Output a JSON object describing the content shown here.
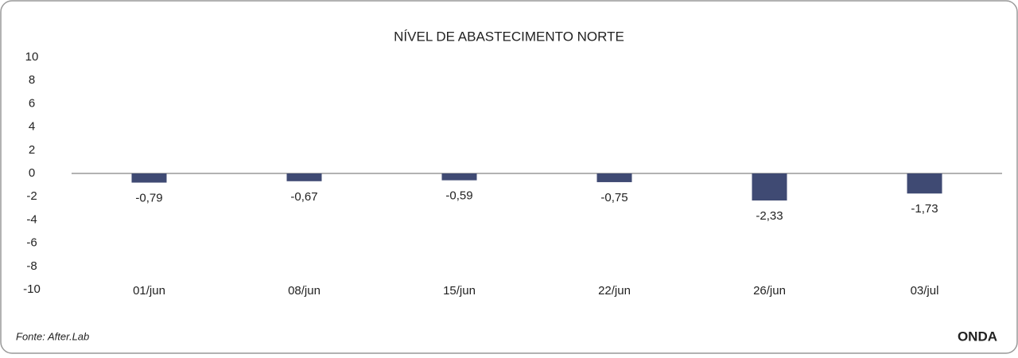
{
  "chart_data": {
    "type": "bar",
    "title": "NÍVEL DE ABASTECIMENTO NORTE",
    "categories": [
      "01/jun",
      "08/jun",
      "15/jun",
      "22/jun",
      "26/jun",
      "03/jul"
    ],
    "values": [
      -0.79,
      -0.67,
      -0.59,
      -0.75,
      -2.33,
      -1.73
    ],
    "value_labels": [
      "-0,79",
      "-0,67",
      "-0,59",
      "-0,75",
      "-2,33",
      "-1,73"
    ],
    "color": "#3f4a73",
    "ylim": [
      -10,
      10
    ],
    "yticks": [
      10,
      8,
      6,
      4,
      2,
      0,
      -2,
      -4,
      -6,
      -8,
      -10
    ],
    "grid": false
  },
  "footer": {
    "source": "Fonte: After.Lab",
    "brand": "ONDA"
  }
}
